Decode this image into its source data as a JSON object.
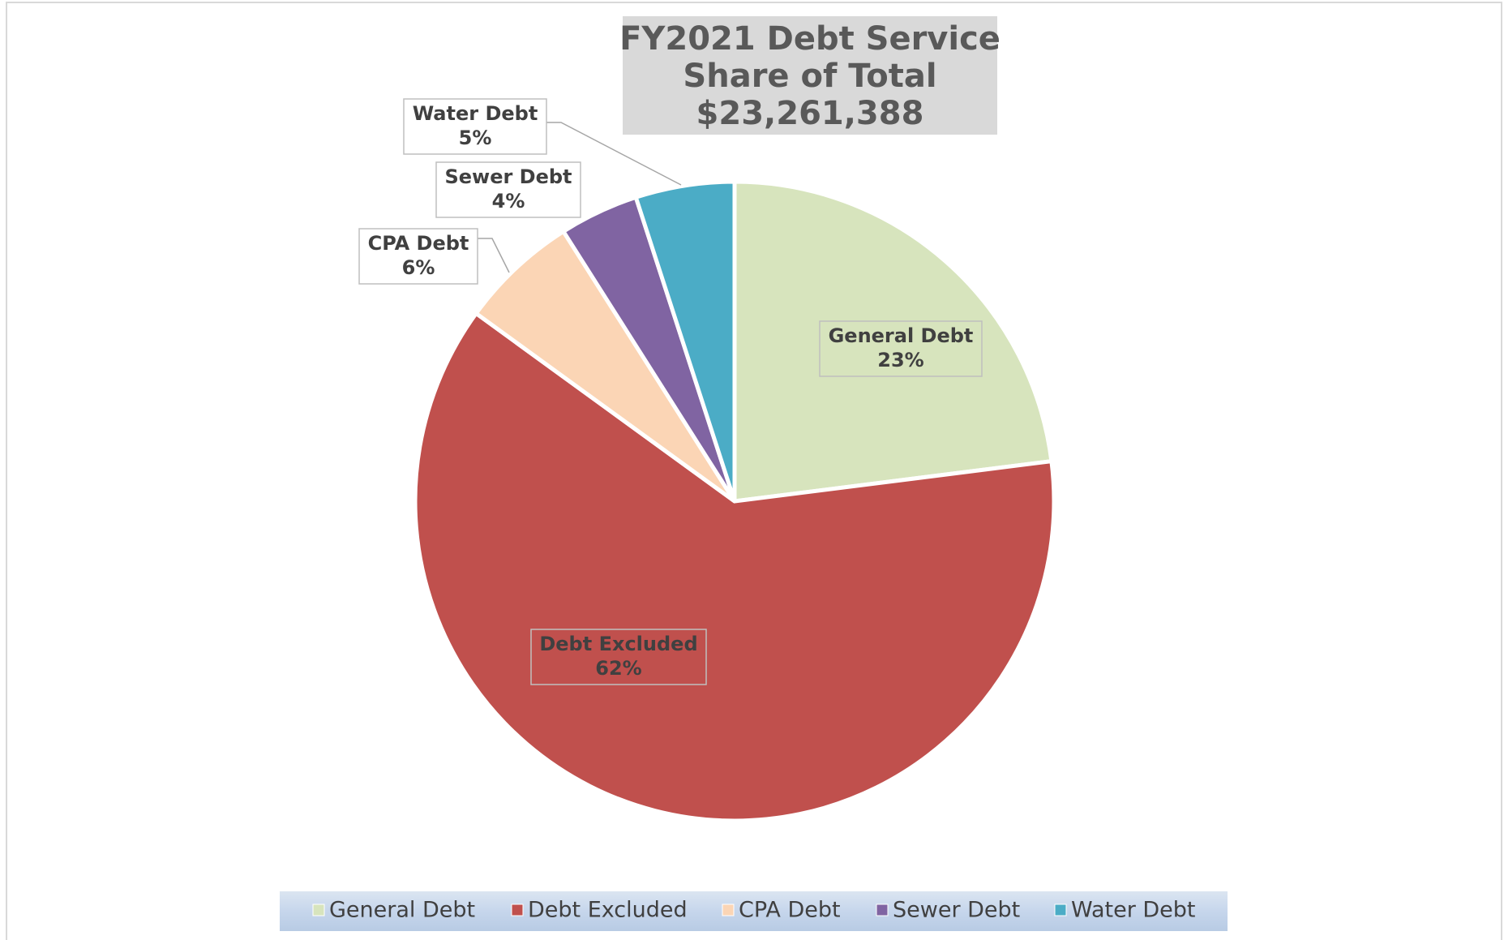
{
  "chart_data": {
    "type": "pie",
    "title_lines": [
      "FY2021 Debt Service",
      "Share of Total",
      "$23,261,388"
    ],
    "categories": [
      "General Debt",
      "Debt Excluded",
      "CPA Debt",
      "Sewer Debt",
      "Water Debt"
    ],
    "values": [
      23,
      62,
      6,
      4,
      5
    ],
    "value_labels": [
      "23%",
      "62%",
      "6%",
      "4%",
      "5%"
    ],
    "colors": [
      "#d7e4bd",
      "#c0504d",
      "#fbd5b5",
      "#8064a2",
      "#4bacc6"
    ],
    "legend": "bottom"
  }
}
